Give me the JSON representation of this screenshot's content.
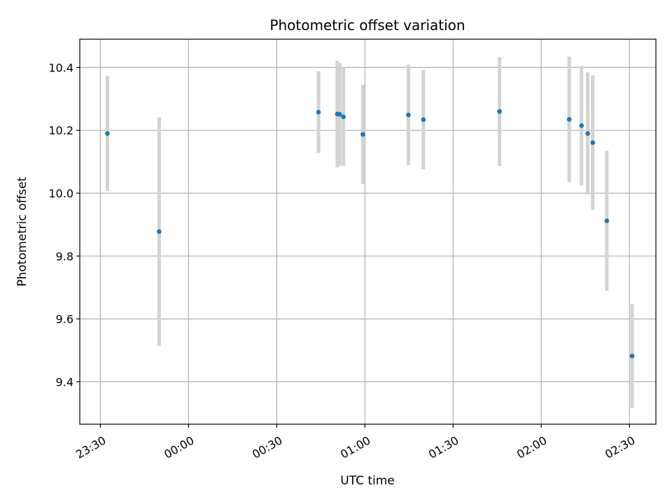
{
  "chart_data": {
    "type": "scatter",
    "title": "Photometric offset variation",
    "xlabel": "UTC time",
    "ylabel": "Photometric offset",
    "xlim": [
      "23:23",
      "02:39"
    ],
    "ylim": [
      9.265,
      10.49
    ],
    "x_ticks": [
      "23:30",
      "00:00",
      "00:30",
      "01:00",
      "01:30",
      "02:00",
      "02:30"
    ],
    "y_ticks": [
      9.4,
      9.6,
      9.8,
      10.0,
      10.2,
      10.4
    ],
    "grid": true,
    "colors": {
      "points": "#1f77b4",
      "errorbars": "#d3d3d3",
      "grid": "#b0b0b0"
    },
    "series": [
      {
        "points": [
          {
            "t": "23:32:24",
            "y": 10.19,
            "err": 0.183
          },
          {
            "t": "23:50:00",
            "y": 9.878,
            "err": 0.363
          },
          {
            "t": "00:44:12",
            "y": 10.258,
            "err": 0.13
          },
          {
            "t": "00:50:36",
            "y": 10.252,
            "err": 0.169
          },
          {
            "t": "00:51:24",
            "y": 10.251,
            "err": 0.163
          },
          {
            "t": "00:52:42",
            "y": 10.243,
            "err": 0.157
          },
          {
            "t": "00:59:18",
            "y": 10.187,
            "err": 0.158
          },
          {
            "t": "01:14:48",
            "y": 10.249,
            "err": 0.16
          },
          {
            "t": "01:19:54",
            "y": 10.234,
            "err": 0.158
          },
          {
            "t": "01:45:48",
            "y": 10.26,
            "err": 0.173
          },
          {
            "t": "02:09:30",
            "y": 10.235,
            "err": 0.2
          },
          {
            "t": "02:13:42",
            "y": 10.215,
            "err": 0.19
          },
          {
            "t": "02:15:48",
            "y": 10.19,
            "err": 0.194
          },
          {
            "t": "02:17:30",
            "y": 10.161,
            "err": 0.214
          },
          {
            "t": "02:22:18",
            "y": 9.912,
            "err": 0.223
          },
          {
            "t": "02:30:54",
            "y": 9.482,
            "err": 0.165
          }
        ]
      }
    ]
  }
}
